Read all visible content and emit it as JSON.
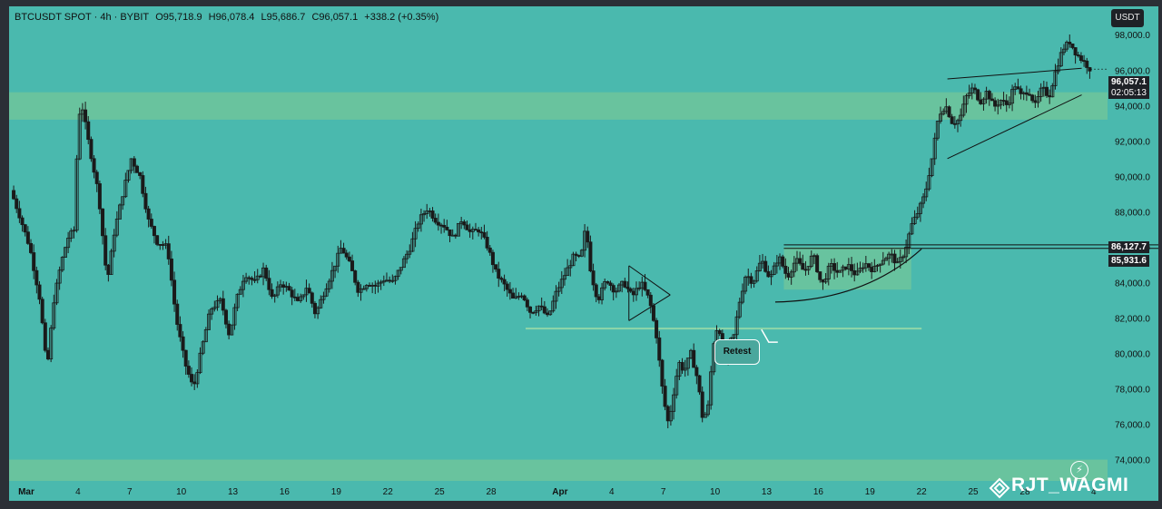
{
  "legend": {
    "symbol": "BTCUSDT SPOT · 4h · BYBIT",
    "open": "O95,718.9",
    "high": "H96,078.4",
    "low": "L95,686.7",
    "close": "C96,057.1",
    "change": "+338.2 (+0.35%)"
  },
  "currency_button": "USDT",
  "last_price_label": "96,057.1",
  "countdown_label": "02:05:13",
  "level_labels": [
    "86,127.7",
    "85,931.6"
  ],
  "annotation": "Retest",
  "watermark": "RJT_WAGMI",
  "colors": {
    "background": "#4ab9ae",
    "zone": "#6dc49c",
    "candle": "#1a1a1a",
    "frame": "#2b2f36"
  },
  "chart_data": {
    "type": "candlestick",
    "title": "",
    "xlabel": "",
    "ylabel": "",
    "ylim": [
      72800,
      99600
    ],
    "y_ticks": [
      74000,
      76000,
      78000,
      80000,
      82000,
      84000,
      86000,
      88000,
      90000,
      92000,
      94000,
      96000,
      98000
    ],
    "y_tick_labels": [
      "74,000.0",
      "76,000.0",
      "78,000.0",
      "80,000.0",
      "82,000.0",
      "84,000.0",
      "86,000.0",
      "88,000.0",
      "90,000.0",
      "92,000.0",
      "94,000.0",
      "96,000.0",
      "98,000.0"
    ],
    "x_start": "Feb 28",
    "x_end": "Apr 30",
    "x_ticks": [
      {
        "day": 1,
        "label": "Mar"
      },
      {
        "day": 4,
        "label": "4"
      },
      {
        "day": 7,
        "label": "7"
      },
      {
        "day": 10,
        "label": "10"
      },
      {
        "day": 13,
        "label": "13"
      },
      {
        "day": 16,
        "label": "16"
      },
      {
        "day": 19,
        "label": "19"
      },
      {
        "day": 22,
        "label": "22"
      },
      {
        "day": 25,
        "label": "25"
      },
      {
        "day": 28,
        "label": "28"
      },
      {
        "day": 32,
        "label": "Apr"
      },
      {
        "day": 35,
        "label": "4"
      },
      {
        "day": 38,
        "label": "7"
      },
      {
        "day": 41,
        "label": "10"
      },
      {
        "day": 44,
        "label": "13"
      },
      {
        "day": 47,
        "label": "16"
      },
      {
        "day": 50,
        "label": "19"
      },
      {
        "day": 53,
        "label": "22"
      },
      {
        "day": 56,
        "label": "25"
      },
      {
        "day": 59,
        "label": "28"
      },
      {
        "day": 63,
        "label": "4"
      }
    ],
    "price_path": [
      [
        0.1,
        89200
      ],
      [
        0.6,
        87800
      ],
      [
        1.2,
        86000
      ],
      [
        1.8,
        83000
      ],
      [
        2.2,
        79000
      ],
      [
        2.6,
        83000
      ],
      [
        3.0,
        85000
      ],
      [
        3.4,
        86500
      ],
      [
        3.8,
        87000
      ],
      [
        4.0,
        93000
      ],
      [
        4.2,
        94200
      ],
      [
        4.6,
        92000
      ],
      [
        5.2,
        89000
      ],
      [
        5.7,
        84000
      ],
      [
        6.1,
        86800
      ],
      [
        6.6,
        89000
      ],
      [
        7.1,
        91000
      ],
      [
        7.6,
        90000
      ],
      [
        8.1,
        87500
      ],
      [
        8.6,
        86300
      ],
      [
        9.2,
        86000
      ],
      [
        9.7,
        82000
      ],
      [
        10.2,
        79500
      ],
      [
        10.7,
        78000
      ],
      [
        11.2,
        80300
      ],
      [
        11.7,
        82500
      ],
      [
        12.3,
        83000
      ],
      [
        12.8,
        81000
      ],
      [
        13.2,
        83000
      ],
      [
        13.7,
        84500
      ],
      [
        14.3,
        84000
      ],
      [
        14.8,
        84800
      ],
      [
        15.3,
        83000
      ],
      [
        15.8,
        84000
      ],
      [
        16.3,
        83500
      ],
      [
        16.8,
        82800
      ],
      [
        17.3,
        83800
      ],
      [
        17.8,
        82200
      ],
      [
        18.3,
        83500
      ],
      [
        18.8,
        84700
      ],
      [
        19.3,
        86000
      ],
      [
        19.8,
        85000
      ],
      [
        20.3,
        83500
      ],
      [
        20.8,
        84000
      ],
      [
        21.3,
        83800
      ],
      [
        21.8,
        84200
      ],
      [
        22.3,
        84000
      ],
      [
        22.8,
        85000
      ],
      [
        23.3,
        86000
      ],
      [
        23.8,
        87500
      ],
      [
        24.3,
        88200
      ],
      [
        24.8,
        87500
      ],
      [
        25.3,
        87200
      ],
      [
        25.8,
        86500
      ],
      [
        26.3,
        87600
      ],
      [
        26.8,
        86800
      ],
      [
        27.3,
        87000
      ],
      [
        27.8,
        86000
      ],
      [
        28.3,
        84500
      ],
      [
        28.8,
        83800
      ],
      [
        29.3,
        83000
      ],
      [
        29.8,
        83400
      ],
      [
        30.3,
        82300
      ],
      [
        30.8,
        82700
      ],
      [
        31.3,
        82000
      ],
      [
        31.8,
        83500
      ],
      [
        32.3,
        84500
      ],
      [
        32.8,
        85500
      ],
      [
        33.2,
        85300
      ],
      [
        33.5,
        87200
      ],
      [
        33.8,
        84500
      ],
      [
        34.2,
        83000
      ],
      [
        34.7,
        84200
      ],
      [
        35.2,
        83500
      ],
      [
        35.7,
        84000
      ],
      [
        36.2,
        83200
      ],
      [
        36.7,
        84000
      ],
      [
        37.2,
        83000
      ],
      [
        37.6,
        81000
      ],
      [
        38.0,
        77500
      ],
      [
        38.3,
        76000
      ],
      [
        38.6,
        77800
      ],
      [
        38.9,
        79500
      ],
      [
        39.2,
        79000
      ],
      [
        39.6,
        80000
      ],
      [
        40.0,
        78500
      ],
      [
        40.3,
        76200
      ],
      [
        40.6,
        77000
      ],
      [
        40.9,
        80500
      ],
      [
        41.2,
        81800
      ],
      [
        41.5,
        79500
      ],
      [
        41.8,
        80500
      ],
      [
        42.1,
        81000
      ],
      [
        42.4,
        82800
      ],
      [
        42.8,
        84500
      ],
      [
        43.2,
        84000
      ],
      [
        43.7,
        85300
      ],
      [
        44.2,
        84200
      ],
      [
        44.7,
        85500
      ],
      [
        45.2,
        84300
      ],
      [
        45.7,
        85300
      ],
      [
        46.2,
        84600
      ],
      [
        46.7,
        85600
      ],
      [
        47.2,
        83800
      ],
      [
        47.7,
        85000
      ],
      [
        48.2,
        84500
      ],
      [
        48.7,
        85000
      ],
      [
        49.2,
        84400
      ],
      [
        49.7,
        85100
      ],
      [
        50.2,
        84700
      ],
      [
        50.7,
        85300
      ],
      [
        51.2,
        85600
      ],
      [
        51.6,
        85000
      ],
      [
        52.0,
        85700
      ],
      [
        52.4,
        87200
      ],
      [
        52.8,
        88000
      ],
      [
        53.2,
        89000
      ],
      [
        53.6,
        91000
      ],
      [
        54.0,
        93500
      ],
      [
        54.4,
        94000
      ],
      [
        54.8,
        93000
      ],
      [
        55.2,
        93200
      ],
      [
        55.6,
        94500
      ],
      [
        56.0,
        95000
      ],
      [
        56.4,
        94200
      ],
      [
        56.8,
        94800
      ],
      [
        57.2,
        93900
      ],
      [
        57.6,
        94300
      ],
      [
        58.0,
        94000
      ],
      [
        58.4,
        95200
      ],
      [
        58.8,
        94500
      ],
      [
        59.2,
        94900
      ],
      [
        59.6,
        94000
      ],
      [
        60.0,
        95000
      ],
      [
        60.4,
        94500
      ],
      [
        60.8,
        96000
      ],
      [
        61.2,
        97200
      ],
      [
        61.6,
        97600
      ],
      [
        62.0,
        96900
      ],
      [
        62.4,
        96500
      ],
      [
        62.8,
        96057
      ]
    ],
    "horizontal_zones": [
      {
        "from": 93200,
        "to": 94750
      },
      {
        "from": 72800,
        "to": 74000
      }
    ],
    "levels": [
      86127.7,
      85931.6
    ],
    "support_line": {
      "price": 81400,
      "x_from": 30.0,
      "x_to": 53.0
    },
    "consolidation_box": {
      "x_from": 45.0,
      "x_to": 52.4,
      "price_from": 83600,
      "price_to": 86000
    },
    "pattern_lines": [
      {
        "name": "triangle-top",
        "points": [
          [
            36.0,
            84950
          ],
          [
            38.4,
            83300
          ]
        ]
      },
      {
        "name": "triangle-bottom",
        "points": [
          [
            36.0,
            81850
          ],
          [
            38.4,
            83300
          ]
        ]
      },
      {
        "name": "triangle-left",
        "points": [
          [
            36.0,
            81850
          ],
          [
            36.0,
            84950
          ]
        ]
      },
      {
        "name": "wedge-upper",
        "points": [
          [
            54.5,
            95500
          ],
          [
            62.3,
            96100
          ]
        ]
      },
      {
        "name": "wedge-lower",
        "points": [
          [
            54.5,
            91000
          ],
          [
            62.3,
            94600
          ]
        ]
      }
    ],
    "rounding_curve": [
      [
        44.5,
        82900
      ],
      [
        47.5,
        82950
      ],
      [
        50.5,
        83700
      ],
      [
        53.0,
        85900
      ]
    ],
    "retest_point": [
      43.7,
      81350
    ]
  }
}
